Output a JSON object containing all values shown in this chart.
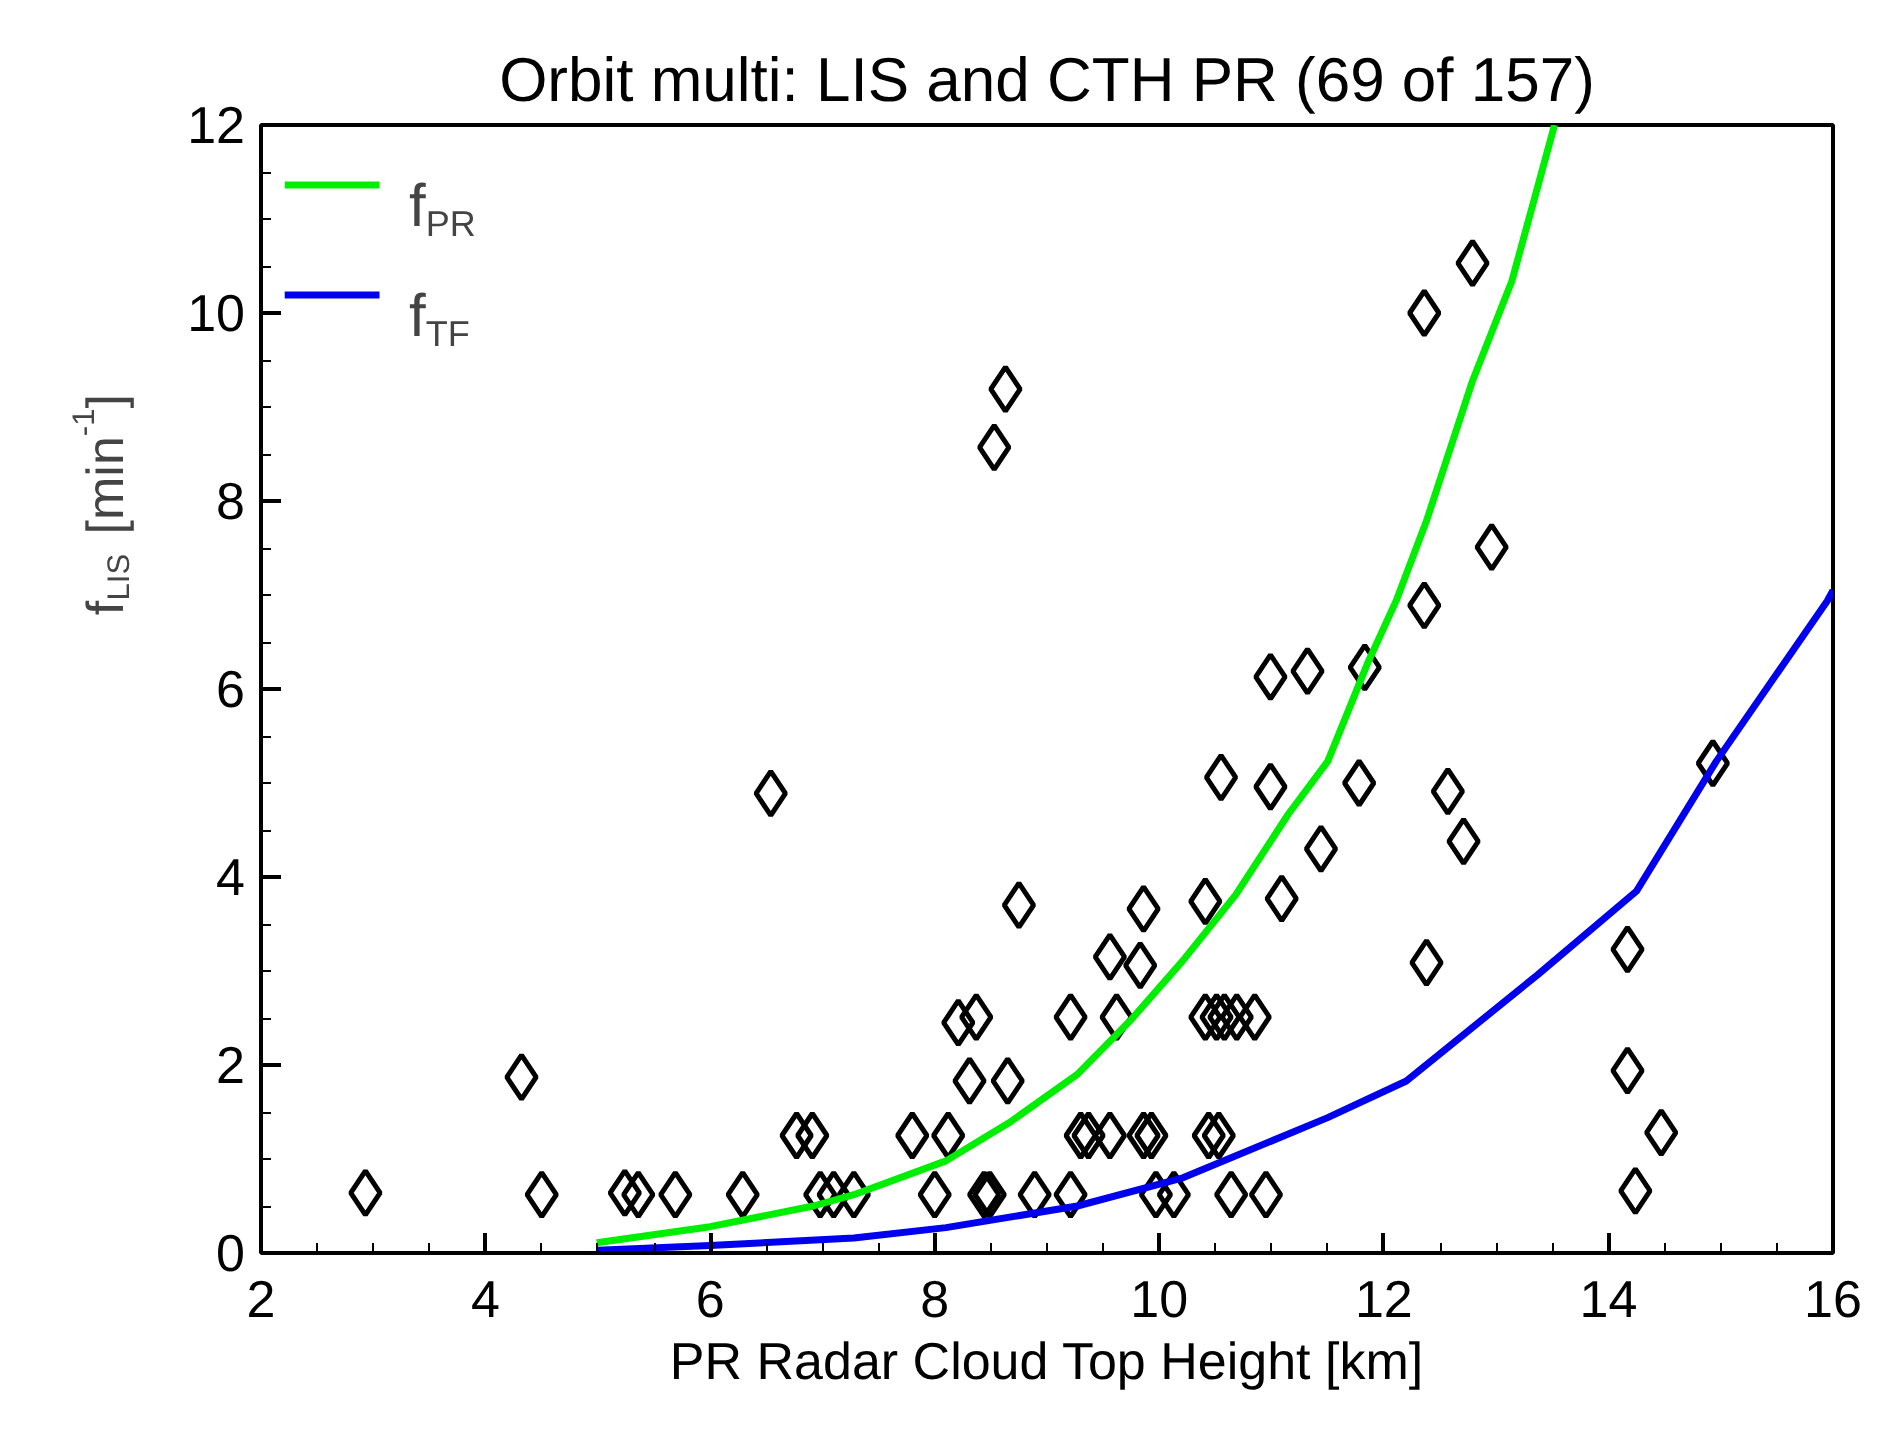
{
  "chart_data": {
    "type": "scatter",
    "title": "Orbit multi: LIS and CTH PR (69 of 157)",
    "xlabel": "PR Radar Cloud Top Height [km]",
    "ylabel": "f$_{LIS}$ [min$^{-1}$]",
    "xlim": [
      2,
      16
    ],
    "ylim": [
      0,
      12
    ],
    "xticks": [
      2,
      4,
      6,
      8,
      10,
      12,
      14,
      16
    ],
    "yticks": [
      0,
      2,
      4,
      6,
      8,
      10,
      12
    ],
    "legend": "top left",
    "grid": false,
    "series": [
      {
        "color": "#000000",
        "marker": "diamond",
        "x": [
          2.93,
          4.32,
          4.5,
          5.24,
          5.36,
          5.69,
          6.29,
          6.54,
          6.77,
          6.91,
          6.98,
          7.1,
          7.28,
          7.8,
          8.0,
          8.12,
          8.21,
          8.37,
          8.31,
          8.44,
          8.49,
          8.53,
          8.63,
          8.65,
          8.75,
          8.89,
          9.21,
          9.21,
          9.3,
          9.37,
          9.56,
          9.62,
          9.56,
          9.83,
          9.86,
          9.86,
          9.93,
          9.97,
          10.13,
          10.41,
          10.41,
          10.44,
          10.51,
          10.53,
          10.55,
          10.58,
          10.64,
          10.69,
          10.85,
          10.95,
          10.99,
          10.99,
          11.09,
          11.32,
          11.44,
          11.78,
          11.83,
          12.36,
          12.36,
          12.38,
          12.57,
          12.79,
          12.71,
          12.96,
          14.17,
          14.17,
          14.24,
          14.47,
          14.93
        ],
        "values": [
          0.64,
          1.87,
          0.62,
          0.64,
          0.62,
          0.62,
          0.62,
          4.89,
          1.25,
          1.25,
          0.62,
          0.62,
          0.62,
          1.25,
          0.62,
          1.25,
          2.45,
          2.51,
          1.83,
          0.62,
          0.62,
          8.57,
          9.19,
          1.83,
          3.7,
          0.62,
          0.62,
          2.51,
          1.25,
          1.25,
          1.25,
          2.51,
          3.15,
          3.06,
          3.66,
          1.25,
          1.25,
          0.62,
          0.62,
          3.74,
          2.51,
          1.25,
          2.51,
          1.25,
          5.06,
          2.51,
          0.62,
          2.51,
          2.51,
          0.62,
          6.13,
          4.96,
          3.77,
          6.19,
          4.3,
          5.0,
          6.23,
          10.0,
          6.89,
          3.09,
          4.91,
          10.53,
          4.38,
          7.51,
          3.23,
          1.94,
          0.66,
          1.28,
          5.21
        ]
      },
      {
        "type": "line",
        "name": "f$_{PR}$",
        "color": "#00ee00",
        "x": [
          4.99,
          6.0,
          6.92,
          7.28,
          8.1,
          8.68,
          9.27,
          9.74,
          10.21,
          10.68,
          11.15,
          11.5,
          11.85,
          12.11,
          12.38,
          12.79,
          13.14,
          13.52
        ],
        "values": [
          0.11,
          0.28,
          0.5,
          0.62,
          0.98,
          1.4,
          1.9,
          2.47,
          3.11,
          3.81,
          4.67,
          5.23,
          6.26,
          6.94,
          7.79,
          9.28,
          10.34,
          12.0
        ]
      },
      {
        "type": "line",
        "name": "f$_{TF}$",
        "color": "#0000ee",
        "x": [
          5.0,
          6.0,
          7.28,
          8.1,
          9.27,
          10.21,
          11.5,
          12.2,
          13.37,
          14.25,
          14.96,
          15.95,
          16.0
        ],
        "values": [
          0.03,
          0.08,
          0.16,
          0.27,
          0.5,
          0.8,
          1.44,
          1.83,
          2.96,
          3.85,
          5.23,
          6.94,
          7.05
        ]
      }
    ]
  }
}
